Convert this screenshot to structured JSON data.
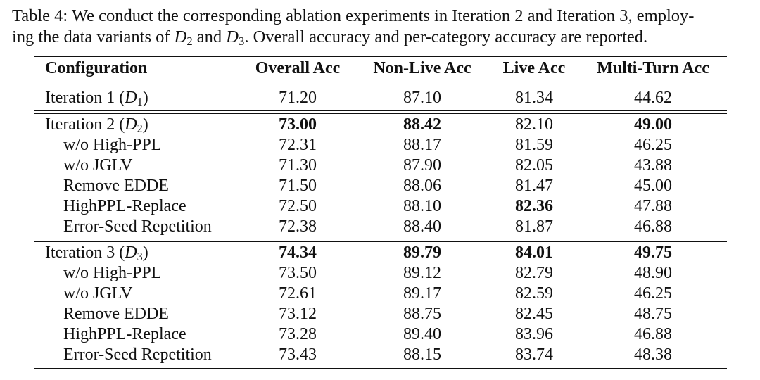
{
  "caption": {
    "line1": "Table 4: We conduct the corresponding ablation experiments in Iteration 2 and Iteration 3, employ-",
    "line2_a": "ing the data variants of ",
    "d2": "D",
    "d2_sub": "2",
    "line2_b": " and ",
    "d3": "D",
    "d3_sub": "3",
    "line2_c": ". Overall accuracy and per-category accuracy are reported."
  },
  "headers": [
    "Configuration",
    "Overall Acc",
    "Non-Live Acc",
    "Live Acc",
    "Multi-Turn Acc"
  ],
  "rows": [
    {
      "label": "Iteration 1 (",
      "dsub": "1",
      "vals": [
        "71.20",
        "87.10",
        "81.34",
        "44.62"
      ]
    },
    {
      "label": "Iteration 2 (",
      "dsub": "2",
      "vals": [
        "73.00",
        "88.42",
        "82.10",
        "49.00"
      ]
    },
    {
      "label": "w/o High-PPL",
      "vals": [
        "72.31",
        "88.17",
        "81.59",
        "46.25"
      ]
    },
    {
      "label": "w/o JGLV",
      "vals": [
        "71.30",
        "87.90",
        "82.05",
        "43.88"
      ]
    },
    {
      "label": "Remove EDDE",
      "vals": [
        "71.50",
        "88.06",
        "81.47",
        "45.00"
      ]
    },
    {
      "label": "HighPPL-Replace",
      "vals": [
        "72.50",
        "88.10",
        "82.36",
        "47.88"
      ]
    },
    {
      "label": "Error-Seed Repetition",
      "vals": [
        "72.38",
        "88.40",
        "81.87",
        "46.88"
      ]
    },
    {
      "label": "Iteration 3 (",
      "dsub": "3",
      "vals": [
        "74.34",
        "89.79",
        "84.01",
        "49.75"
      ]
    },
    {
      "label": "w/o High-PPL",
      "vals": [
        "73.50",
        "89.12",
        "82.79",
        "48.90"
      ]
    },
    {
      "label": "w/o JGLV",
      "vals": [
        "72.61",
        "89.17",
        "82.59",
        "46.25"
      ]
    },
    {
      "label": "Remove EDDE",
      "vals": [
        "73.12",
        "88.75",
        "82.45",
        "48.75"
      ]
    },
    {
      "label": "HighPPL-Replace",
      "vals": [
        "73.28",
        "89.40",
        "83.96",
        "46.88"
      ]
    },
    {
      "label": "Error-Seed Repetition",
      "vals": [
        "73.43",
        "88.15",
        "83.74",
        "48.38"
      ]
    }
  ],
  "d_symbol": "D",
  "close_paren": ")"
}
